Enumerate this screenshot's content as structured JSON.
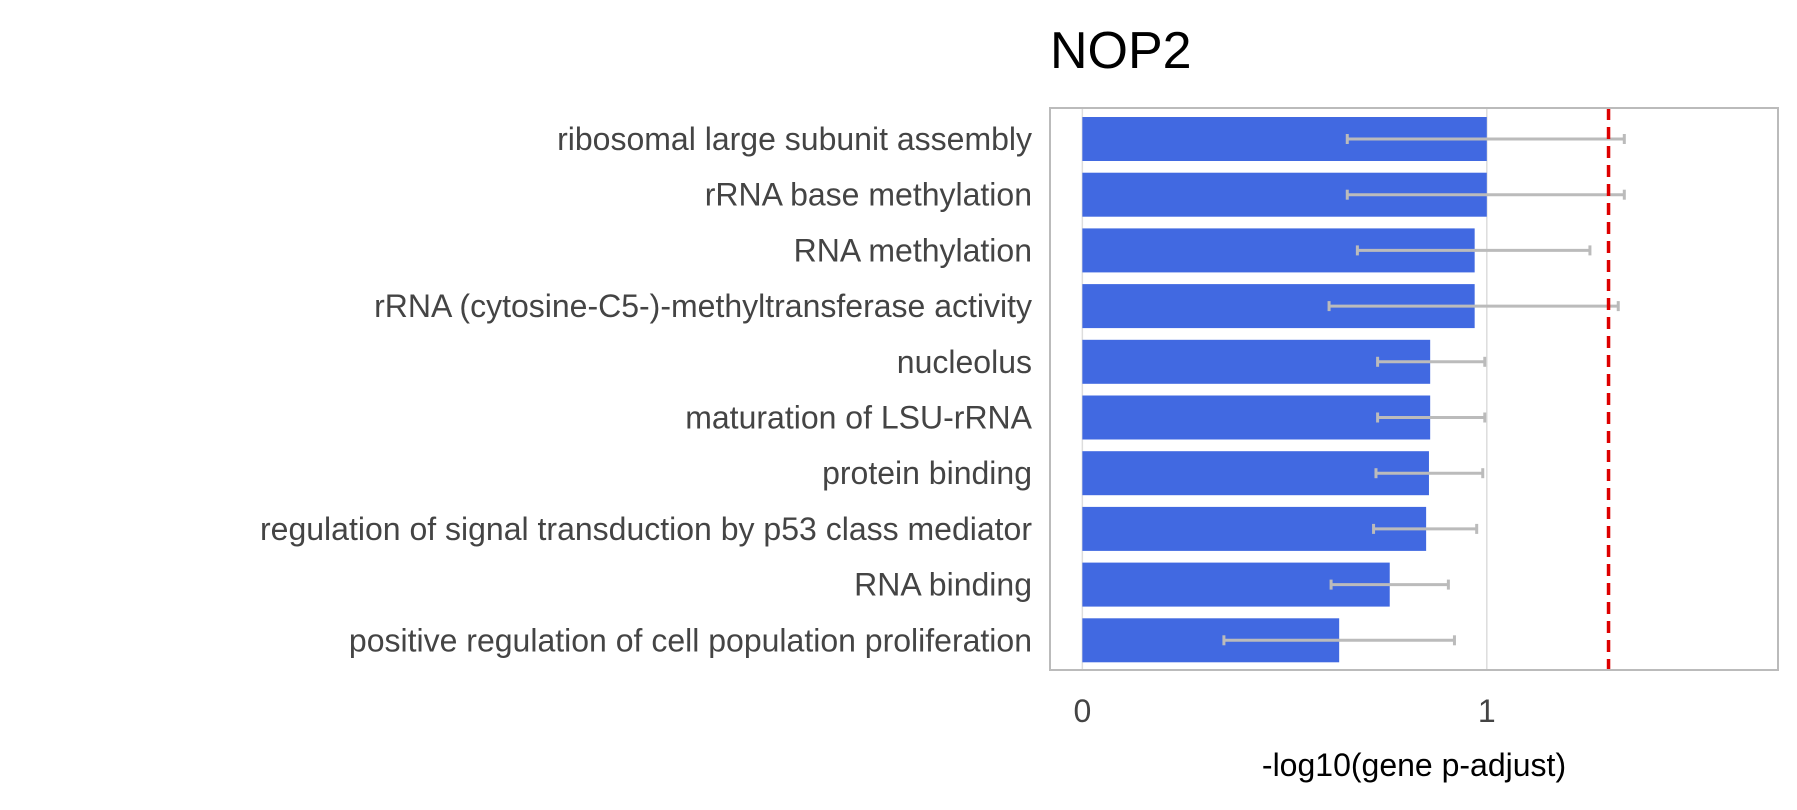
{
  "chart_data": {
    "type": "bar",
    "orientation": "horizontal",
    "title": "NOP2",
    "xlabel": "-log10(gene p-adjust)",
    "ylabel": "",
    "xlim": [
      -0.08,
      1.72
    ],
    "xticks": [
      0,
      1
    ],
    "xtick_labels": [
      "0",
      "1"
    ],
    "grid": true,
    "categories": [
      "ribosomal large subunit assembly",
      "rRNA base methylation",
      "RNA methylation",
      "rRNA (cytosine-C5-)-methyltransferase activity",
      "nucleolus",
      "maturation of LSU-rRNA",
      "protein binding",
      "regulation of signal transduction by p53 class mediator",
      "RNA binding",
      "positive regulation of cell population proliferation"
    ],
    "values": [
      1.0,
      1.0,
      0.97,
      0.97,
      0.86,
      0.86,
      0.857,
      0.85,
      0.76,
      0.635
    ],
    "error_low": [
      0.655,
      0.655,
      0.68,
      0.61,
      0.73,
      0.73,
      0.726,
      0.72,
      0.615,
      0.35
    ],
    "error_high": [
      1.34,
      1.34,
      1.255,
      1.325,
      0.995,
      0.995,
      0.99,
      0.975,
      0.905,
      0.92
    ],
    "threshold": 1.301,
    "colors": {
      "bar": "#4169E1",
      "error": "#BBBBBB",
      "threshold": "#DD0000",
      "frame": "#BBBBBB",
      "grid": "#DDDDDD"
    }
  }
}
